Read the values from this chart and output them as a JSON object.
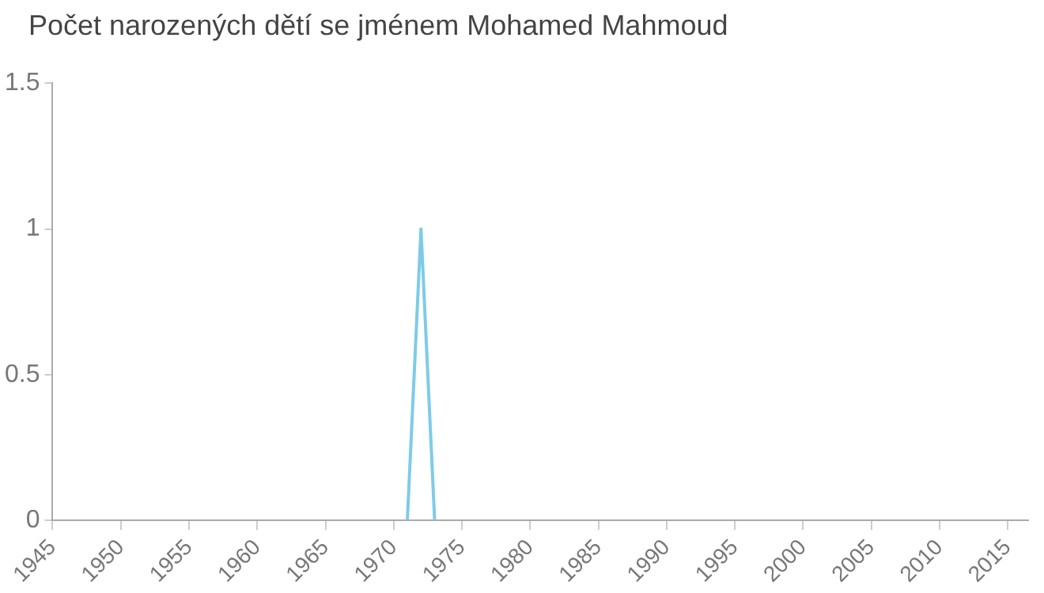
{
  "chart_data": {
    "type": "line",
    "title": "Počet narozených dětí se jménem Mohamed Mahmoud",
    "x": [
      1971,
      1972,
      1973
    ],
    "series": [
      {
        "color": "#7ecbe8",
        "values": [
          0,
          1,
          0
        ]
      }
    ],
    "xlim": [
      1945,
      2016.5
    ],
    "xticks": [
      1945,
      1950,
      1955,
      1960,
      1965,
      1970,
      1975,
      1980,
      1985,
      1990,
      1995,
      2000,
      2005,
      2010,
      2015
    ],
    "ylim": [
      0,
      1.5
    ],
    "yticks": [
      0,
      0.5,
      1,
      1.5
    ],
    "grid": false,
    "legend": false,
    "marker": "none",
    "line_style": "solid"
  }
}
